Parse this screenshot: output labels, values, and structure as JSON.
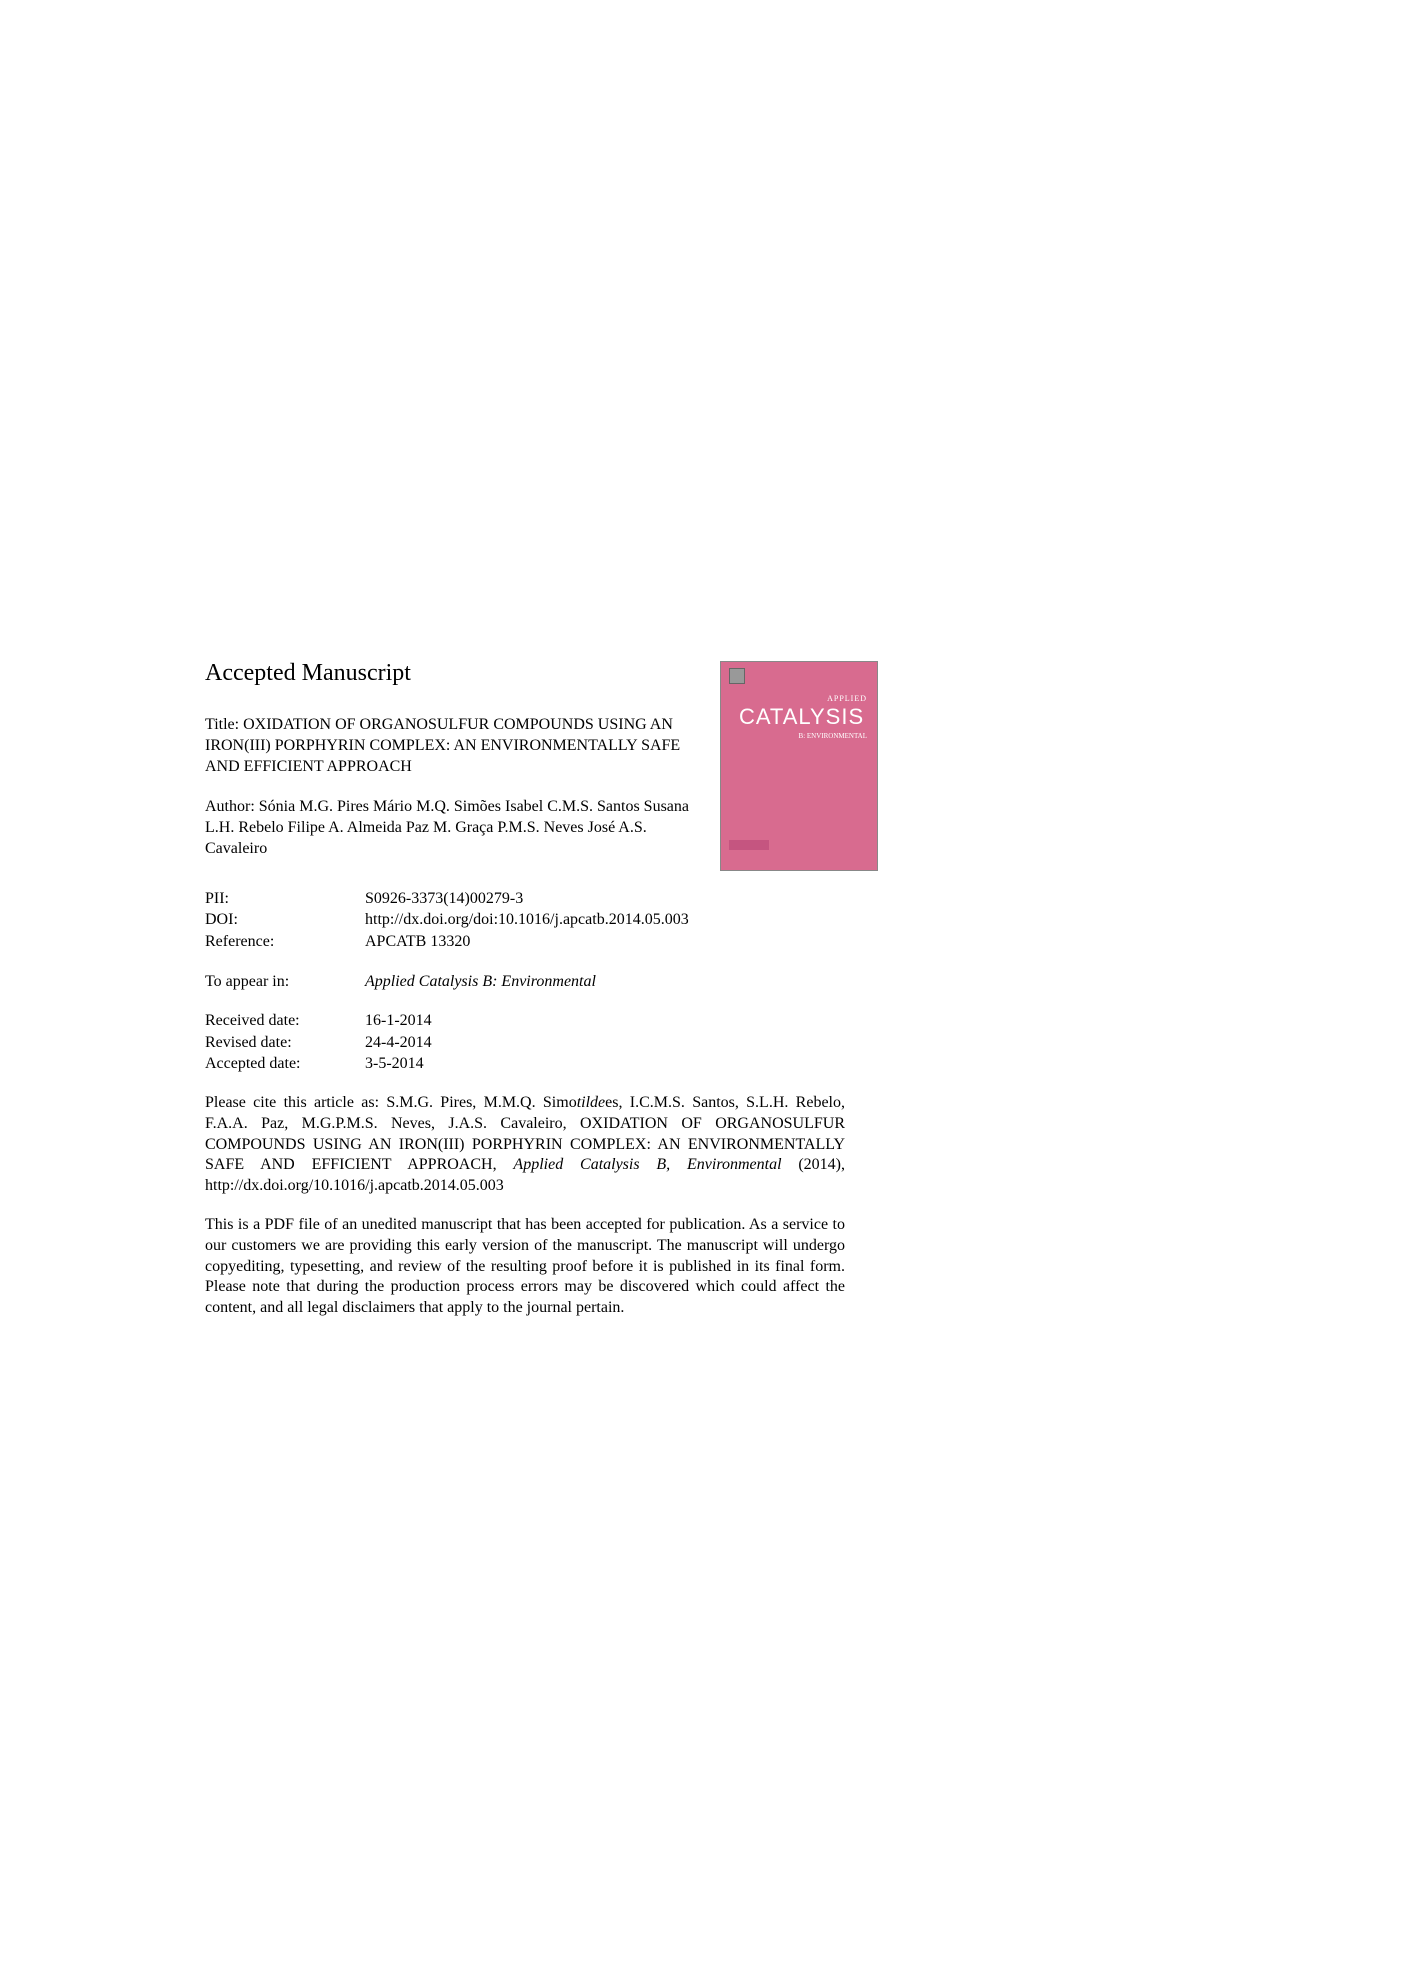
{
  "heading": "Accepted Manuscript",
  "title_prefix": "Title: ",
  "title": "OXIDATION OF ORGANOSULFUR COMPOUNDS USING AN IRON(III) PORPHYRIN COMPLEX: AN ENVIRONMENTALLY SAFE AND EFFICIENT APPROACH",
  "author_prefix": "Author: ",
  "author": "Sónia M.G. Pires Mário M.Q. Simões Isabel C.M.S. Santos Susana L.H. Rebelo Filipe A. Almeida Paz M. Graça P.M.S. Neves José A.S. Cavaleiro",
  "meta": {
    "pii_label": "PII:",
    "pii_value": "S0926-3373(14)00279-3",
    "doi_label": "DOI:",
    "doi_value": "http://dx.doi.org/doi:10.1016/j.apcatb.2014.05.003",
    "ref_label": "Reference:",
    "ref_value": "APCATB 13320",
    "appear_label": "To appear in:",
    "appear_value": "Applied Catalysis B: Environmental",
    "received_label": "Received date:",
    "received_value": "16-1-2014",
    "revised_label": "Revised date:",
    "revised_value": "24-4-2014",
    "accepted_label": "Accepted date:",
    "accepted_value": "3-5-2014"
  },
  "citation_pre": "Please cite this article as: S.M.G. Pires, M.M.Q. Simo",
  "citation_tilde": "tilde",
  "citation_post1": "es, I.C.M.S. Santos, S.L.H. Rebelo, F.A.A. Paz, M.G.P.M.S. Neves, J.A.S. Cavaleiro, OXIDATION OF ORGANOSULFUR COMPOUNDS USING AN IRON(III) PORPHYRIN COMPLEX: AN ENVIRONMENTALLY SAFE AND EFFICIENT APPROACH, ",
  "citation_journal": "Applied Catalysis B, Environmental",
  "citation_post2": " (2014), http://dx.doi.org/10.1016/j.apcatb.2014.05.003",
  "disclaimer": "This is a PDF file of an unedited manuscript that has been accepted for publication. As a service to our customers we are providing this early version of the manuscript. The manuscript will undergo copyediting, typesetting, and review of the resulting proof before it is published in its final form. Please note that during the production process errors may be discovered which could affect the content, and all legal disclaimers that apply to the journal pertain.",
  "cover": {
    "applied": "APPLIED",
    "title": "CATALYSIS",
    "sub": "B: ENVIRONMENTAL",
    "bg_color": "#d86b8f"
  }
}
